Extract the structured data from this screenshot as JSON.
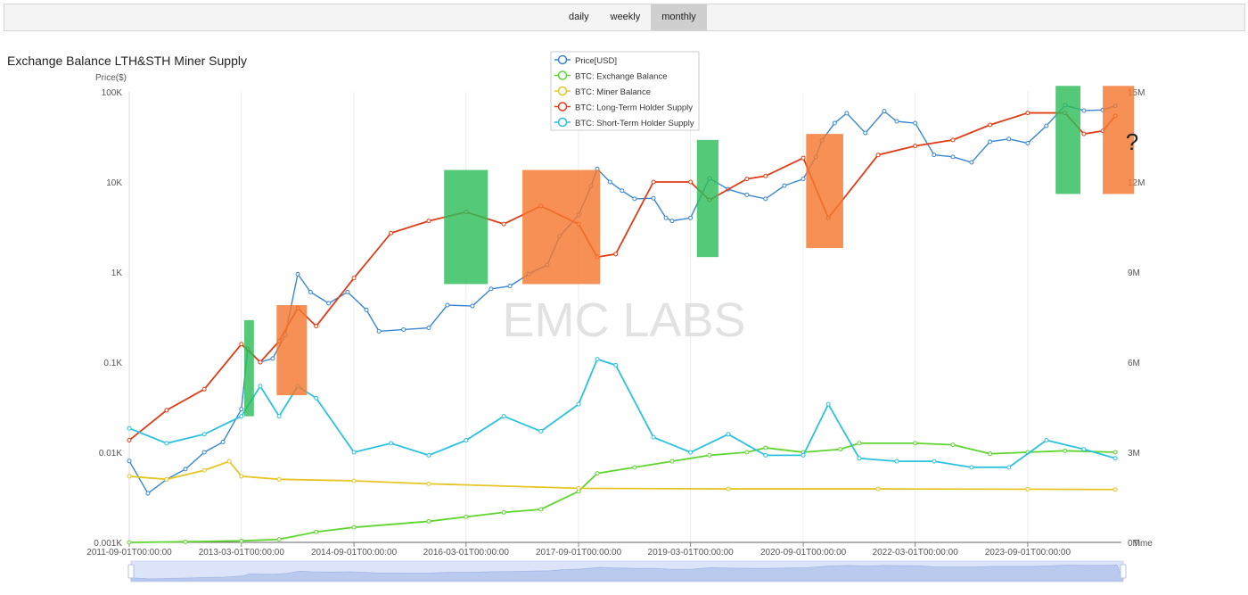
{
  "tabs": [
    {
      "label": "daily",
      "active": false
    },
    {
      "label": "weekly",
      "active": false
    },
    {
      "label": "monthly",
      "active": true
    }
  ],
  "chart_data": {
    "type": "line",
    "title": "Exchange Balance LTH&STH Miner Supply",
    "ylabel_left": "Price($)",
    "xlabel": "Time",
    "y_left_scale": "log",
    "y_left_ticks": [
      "0.001K",
      "0.01K",
      "0.1K",
      "1K",
      "10K",
      "100K"
    ],
    "y_right_ticks": [
      "0M",
      "3M",
      "6M",
      "9M",
      "12M",
      "15M"
    ],
    "ylim_left": [
      1,
      100000
    ],
    "ylim_right": [
      0,
      15000000
    ],
    "x_ticks": [
      "2011-09-01T00:00:00",
      "2013-03-01T00:00:00",
      "2014-09-01T00:00:00",
      "2016-03-01T00:00:00",
      "2017-09-01T00:00:00",
      "2019-03-01T00:00:00",
      "2020-09-01T00:00:00",
      "2022-03-01T00:00:00",
      "2023-09-01T00:00:00"
    ],
    "xlim": [
      "2011-09-01",
      "2024-12-01"
    ],
    "watermark": "EMC LABS",
    "annotation": "?",
    "legend_position": "top-center",
    "grid": true,
    "series": [
      {
        "name": "Price[USD]",
        "axis": "left",
        "color": "#3a86d3",
        "points": [
          [
            "2011-09-01",
            8
          ],
          [
            "2011-12-01",
            3.5
          ],
          [
            "2012-03-01",
            5
          ],
          [
            "2012-06-01",
            6.5
          ],
          [
            "2012-09-01",
            10
          ],
          [
            "2012-12-01",
            13
          ],
          [
            "2013-03-01",
            30
          ],
          [
            "2013-04-01",
            140
          ],
          [
            "2013-06-01",
            100
          ],
          [
            "2013-08-01",
            110
          ],
          [
            "2013-10-01",
            200
          ],
          [
            "2013-12-01",
            950
          ],
          [
            "2014-02-01",
            600
          ],
          [
            "2014-05-01",
            450
          ],
          [
            "2014-08-01",
            600
          ],
          [
            "2014-11-01",
            380
          ],
          [
            "2015-01-01",
            220
          ],
          [
            "2015-05-01",
            230
          ],
          [
            "2015-09-01",
            240
          ],
          [
            "2015-12-01",
            430
          ],
          [
            "2016-04-01",
            420
          ],
          [
            "2016-07-01",
            650
          ],
          [
            "2016-10-01",
            700
          ],
          [
            "2017-01-01",
            950
          ],
          [
            "2017-04-01",
            1200
          ],
          [
            "2017-06-01",
            2500
          ],
          [
            "2017-09-01",
            4300
          ],
          [
            "2017-11-01",
            9000
          ],
          [
            "2017-12-01",
            14000
          ],
          [
            "2018-02-01",
            10000
          ],
          [
            "2018-04-01",
            8000
          ],
          [
            "2018-06-01",
            6500
          ],
          [
            "2018-09-01",
            6600
          ],
          [
            "2018-11-01",
            4000
          ],
          [
            "2018-12-01",
            3700
          ],
          [
            "2019-03-01",
            4000
          ],
          [
            "2019-06-01",
            11000
          ],
          [
            "2019-09-01",
            8300
          ],
          [
            "2019-12-01",
            7200
          ],
          [
            "2020-03-01",
            6500
          ],
          [
            "2020-06-01",
            9100
          ],
          [
            "2020-09-01",
            10800
          ],
          [
            "2020-11-01",
            19000
          ],
          [
            "2020-12-01",
            29000
          ],
          [
            "2021-02-01",
            45000
          ],
          [
            "2021-04-01",
            58000
          ],
          [
            "2021-07-01",
            35000
          ],
          [
            "2021-10-01",
            61000
          ],
          [
            "2021-12-01",
            47000
          ],
          [
            "2022-03-01",
            45000
          ],
          [
            "2022-06-01",
            20000
          ],
          [
            "2022-09-01",
            19000
          ],
          [
            "2022-12-01",
            16500
          ],
          [
            "2023-03-01",
            28000
          ],
          [
            "2023-06-01",
            30000
          ],
          [
            "2023-09-01",
            27000
          ],
          [
            "2023-12-01",
            42000
          ],
          [
            "2024-03-01",
            71000
          ],
          [
            "2024-06-01",
            62000
          ],
          [
            "2024-09-01",
            63000
          ],
          [
            "2024-11-01",
            70000
          ]
        ]
      },
      {
        "name": "BTC: Exchange Balance",
        "axis": "right",
        "color": "#5fd52f",
        "points": [
          [
            "2011-09-01",
            0
          ],
          [
            "2012-06-01",
            20000
          ],
          [
            "2013-03-01",
            50000
          ],
          [
            "2013-09-01",
            100000
          ],
          [
            "2014-03-01",
            350000
          ],
          [
            "2014-09-01",
            500000
          ],
          [
            "2015-09-01",
            700000
          ],
          [
            "2016-03-01",
            850000
          ],
          [
            "2016-09-01",
            1000000
          ],
          [
            "2017-03-01",
            1100000
          ],
          [
            "2017-09-01",
            1700000
          ],
          [
            "2017-12-01",
            2300000
          ],
          [
            "2018-06-01",
            2500000
          ],
          [
            "2018-12-01",
            2700000
          ],
          [
            "2019-06-01",
            2900000
          ],
          [
            "2019-12-01",
            3000000
          ],
          [
            "2020-03-01",
            3150000
          ],
          [
            "2020-09-01",
            3000000
          ],
          [
            "2021-03-01",
            3100000
          ],
          [
            "2021-06-01",
            3300000
          ],
          [
            "2022-03-01",
            3300000
          ],
          [
            "2022-09-01",
            3250000
          ],
          [
            "2023-03-01",
            2950000
          ],
          [
            "2023-09-01",
            3000000
          ],
          [
            "2024-03-01",
            3050000
          ],
          [
            "2024-11-01",
            3000000
          ]
        ]
      },
      {
        "name": "BTC: Miner Balance",
        "axis": "right",
        "color": "#e6c626",
        "points": [
          [
            "2011-09-01",
            2200000
          ],
          [
            "2012-03-01",
            2100000
          ],
          [
            "2012-09-01",
            2400000
          ],
          [
            "2013-01-01",
            2700000
          ],
          [
            "2013-03-01",
            2200000
          ],
          [
            "2013-09-01",
            2100000
          ],
          [
            "2014-09-01",
            2050000
          ],
          [
            "2015-09-01",
            1950000
          ],
          [
            "2017-09-01",
            1800000
          ],
          [
            "2019-09-01",
            1780000
          ],
          [
            "2021-09-01",
            1780000
          ],
          [
            "2023-09-01",
            1770000
          ],
          [
            "2024-11-01",
            1760000
          ]
        ]
      },
      {
        "name": "BTC: Long-Term Holder Supply",
        "axis": "right",
        "color": "#e03c17",
        "points": [
          [
            "2011-09-01",
            3400000
          ],
          [
            "2012-03-01",
            4400000
          ],
          [
            "2012-09-01",
            5100000
          ],
          [
            "2013-03-01",
            6600000
          ],
          [
            "2013-06-01",
            6000000
          ],
          [
            "2013-09-01",
            6700000
          ],
          [
            "2013-12-01",
            7800000
          ],
          [
            "2014-03-01",
            7200000
          ],
          [
            "2014-09-01",
            8800000
          ],
          [
            "2015-03-01",
            10300000
          ],
          [
            "2015-09-01",
            10700000
          ],
          [
            "2016-03-01",
            11000000
          ],
          [
            "2016-09-01",
            10600000
          ],
          [
            "2017-03-01",
            11200000
          ],
          [
            "2017-09-01",
            10600000
          ],
          [
            "2017-12-01",
            9500000
          ],
          [
            "2018-03-01",
            9600000
          ],
          [
            "2018-09-01",
            12000000
          ],
          [
            "2019-03-01",
            12000000
          ],
          [
            "2019-06-01",
            11400000
          ],
          [
            "2019-12-01",
            12100000
          ],
          [
            "2020-03-01",
            12200000
          ],
          [
            "2020-09-01",
            12800000
          ],
          [
            "2021-01-01",
            10800000
          ],
          [
            "2021-09-01",
            12900000
          ],
          [
            "2022-03-01",
            13200000
          ],
          [
            "2022-09-01",
            13400000
          ],
          [
            "2023-03-01",
            13900000
          ],
          [
            "2023-09-01",
            14300000
          ],
          [
            "2024-03-01",
            14300000
          ],
          [
            "2024-06-01",
            13600000
          ],
          [
            "2024-09-01",
            13700000
          ],
          [
            "2024-11-01",
            14200000
          ]
        ]
      },
      {
        "name": "BTC: Short-Term Holder Supply",
        "axis": "right",
        "color": "#2ac2df",
        "points": [
          [
            "2011-09-01",
            3800000
          ],
          [
            "2012-03-01",
            3300000
          ],
          [
            "2012-09-01",
            3600000
          ],
          [
            "2013-03-01",
            4200000
          ],
          [
            "2013-06-01",
            5200000
          ],
          [
            "2013-09-01",
            4200000
          ],
          [
            "2013-12-01",
            5200000
          ],
          [
            "2014-03-01",
            4800000
          ],
          [
            "2014-09-01",
            3000000
          ],
          [
            "2015-03-01",
            3300000
          ],
          [
            "2015-09-01",
            2900000
          ],
          [
            "2016-03-01",
            3400000
          ],
          [
            "2016-09-01",
            4200000
          ],
          [
            "2017-03-01",
            3700000
          ],
          [
            "2017-09-01",
            4600000
          ],
          [
            "2017-12-01",
            6100000
          ],
          [
            "2018-03-01",
            5900000
          ],
          [
            "2018-09-01",
            3500000
          ],
          [
            "2019-03-01",
            3000000
          ],
          [
            "2019-09-01",
            3600000
          ],
          [
            "2020-03-01",
            2900000
          ],
          [
            "2020-09-01",
            2900000
          ],
          [
            "2021-01-01",
            4600000
          ],
          [
            "2021-06-01",
            2800000
          ],
          [
            "2021-12-01",
            2700000
          ],
          [
            "2022-06-01",
            2700000
          ],
          [
            "2022-12-01",
            2500000
          ],
          [
            "2023-06-01",
            2500000
          ],
          [
            "2023-12-01",
            3400000
          ],
          [
            "2024-06-01",
            3100000
          ],
          [
            "2024-11-01",
            2800000
          ]
        ]
      }
    ],
    "highlight_boxes": [
      {
        "color": "#2ebd59",
        "x": [
          "2013-03-15",
          "2013-05-01"
        ],
        "y_right": [
          4200000,
          7400000
        ]
      },
      {
        "color": "#f4782f",
        "x": [
          "2013-08-20",
          "2014-01-15"
        ],
        "y_right": [
          4900000,
          7900000
        ]
      },
      {
        "color": "#2ebd59",
        "x": [
          "2015-11-15",
          "2016-06-15"
        ],
        "y_right": [
          8600000,
          12400000
        ]
      },
      {
        "color": "#f4782f",
        "x": [
          "2016-12-01",
          "2017-12-15"
        ],
        "y_right": [
          8600000,
          12400000
        ]
      },
      {
        "color": "#2ebd59",
        "x": [
          "2019-04-01",
          "2019-07-15"
        ],
        "y_right": [
          9500000,
          13400000
        ]
      },
      {
        "color": "#f4782f",
        "x": [
          "2020-09-15",
          "2021-03-15"
        ],
        "y_right": [
          9800000,
          13600000
        ]
      },
      {
        "color": "#2ebd59",
        "x": [
          "2024-01-15",
          "2024-05-15"
        ],
        "y_right": [
          11600000,
          15200000
        ]
      },
      {
        "color": "#f4782f",
        "x": [
          "2024-09-01",
          "2025-02-01"
        ],
        "y_right": [
          11600000,
          15200000
        ]
      }
    ]
  }
}
